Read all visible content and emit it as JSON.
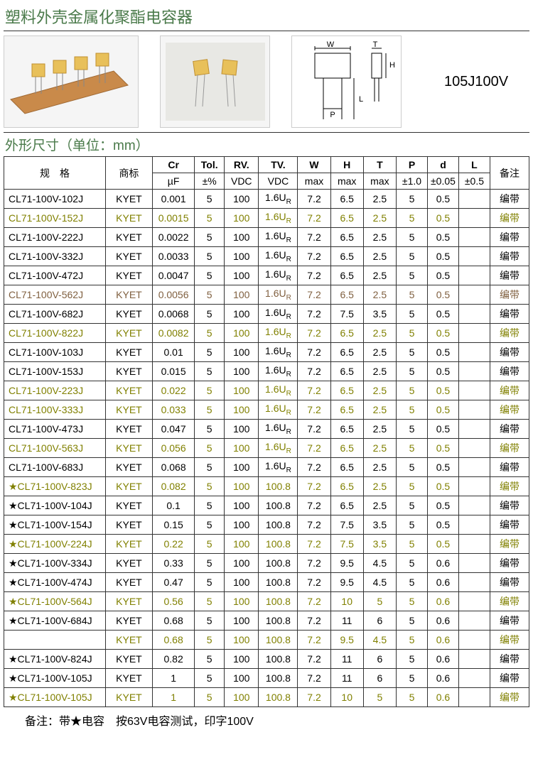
{
  "title": "塑料外壳金属化聚酯电容器",
  "product_label": "105J100V",
  "subtitle": "外形尺寸（单位：mm）",
  "footnote": "备注：带★电容　按63V电容测试，印字100V",
  "headers": {
    "row1": {
      "spec": "规　格",
      "brand": "商标",
      "cr": "Cr",
      "tol": "Tol.",
      "rv": "RV.",
      "tv": "TV.",
      "w": "W",
      "h": "H",
      "t": "T",
      "p": "P",
      "d": "d",
      "l": "L",
      "note": "备注"
    },
    "row2": {
      "cr": "µF",
      "tol": "±%",
      "rv": "VDC",
      "tv": "VDC",
      "w": "max",
      "h": "max",
      "t": "max",
      "p": "±1.0",
      "d": "±0.05",
      "l": "±0.5"
    }
  },
  "row_colors": {
    "black": "#000000",
    "olive": "#808000",
    "brown": "#806040"
  },
  "rows": [
    {
      "cls": "black",
      "spec": "CL71-100V-102J",
      "brand": "KYET",
      "cr": "0.001",
      "tol": "5",
      "rv": "100",
      "tv": "1.6U",
      "tvs": "R",
      "w": "7.2",
      "h": "6.5",
      "t": "2.5",
      "p": "5",
      "d": "0.5",
      "l": "",
      "note": "编带"
    },
    {
      "cls": "alt",
      "spec": "CL71-100V-152J",
      "brand": "KYET",
      "cr": "0.0015",
      "tol": "5",
      "rv": "100",
      "tv": "1.6U",
      "tvs": "R",
      "w": "7.2",
      "h": "6.5",
      "t": "2.5",
      "p": "5",
      "d": "0.5",
      "l": "",
      "note": "编带"
    },
    {
      "cls": "black",
      "spec": "CL71-100V-222J",
      "brand": "KYET",
      "cr": "0.0022",
      "tol": "5",
      "rv": "100",
      "tv": "1.6U",
      "tvs": "R",
      "w": "7.2",
      "h": "6.5",
      "t": "2.5",
      "p": "5",
      "d": "0.5",
      "l": "",
      "note": "编带"
    },
    {
      "cls": "black",
      "spec": "CL71-100V-332J",
      "brand": "KYET",
      "cr": "0.0033",
      "tol": "5",
      "rv": "100",
      "tv": "1.6U",
      "tvs": "R",
      "w": "7.2",
      "h": "6.5",
      "t": "2.5",
      "p": "5",
      "d": "0.5",
      "l": "",
      "note": "编带"
    },
    {
      "cls": "black",
      "spec": "CL71-100V-472J",
      "brand": "KYET",
      "cr": "0.0047",
      "tol": "5",
      "rv": "100",
      "tv": "1.6U",
      "tvs": "R",
      "w": "7.2",
      "h": "6.5",
      "t": "2.5",
      "p": "5",
      "d": "0.5",
      "l": "",
      "note": "编带"
    },
    {
      "cls": "brown",
      "spec": "CL71-100V-562J",
      "brand": "KYET",
      "cr": "0.0056",
      "tol": "5",
      "rv": "100",
      "tv": "1.6U",
      "tvs": "R",
      "w": "7.2",
      "h": "6.5",
      "t": "2.5",
      "p": "5",
      "d": "0.5",
      "l": "",
      "note": "编带"
    },
    {
      "cls": "black",
      "spec": "CL71-100V-682J",
      "brand": "KYET",
      "cr": "0.0068",
      "tol": "5",
      "rv": "100",
      "tv": "1.6U",
      "tvs": "R",
      "w": "7.2",
      "h": "7.5",
      "t": "3.5",
      "p": "5",
      "d": "0.5",
      "l": "",
      "note": "编带"
    },
    {
      "cls": "alt",
      "spec": "CL71-100V-822J",
      "brand": "KYET",
      "cr": "0.0082",
      "tol": "5",
      "rv": "100",
      "tv": "1.6U",
      "tvs": "R",
      "w": "7.2",
      "h": "6.5",
      "t": "2.5",
      "p": "5",
      "d": "0.5",
      "l": "",
      "note": "编带"
    },
    {
      "cls": "black",
      "spec": "CL71-100V-103J",
      "brand": "KYET",
      "cr": "0.01",
      "tol": "5",
      "rv": "100",
      "tv": "1.6U",
      "tvs": "R",
      "w": "7.2",
      "h": "6.5",
      "t": "2.5",
      "p": "5",
      "d": "0.5",
      "l": "",
      "note": "编带"
    },
    {
      "cls": "black",
      "spec": "CL71-100V-153J",
      "brand": "KYET",
      "cr": "0.015",
      "tol": "5",
      "rv": "100",
      "tv": "1.6U",
      "tvs": "R",
      "w": "7.2",
      "h": "6.5",
      "t": "2.5",
      "p": "5",
      "d": "0.5",
      "l": "",
      "note": "编带"
    },
    {
      "cls": "alt",
      "spec": "CL71-100V-223J",
      "brand": "KYET",
      "cr": "0.022",
      "tol": "5",
      "rv": "100",
      "tv": "1.6U",
      "tvs": "R",
      "w": "7.2",
      "h": "6.5",
      "t": "2.5",
      "p": "5",
      "d": "0.5",
      "l": "",
      "note": "编带"
    },
    {
      "cls": "alt",
      "spec": "CL71-100V-333J",
      "brand": "KYET",
      "cr": "0.033",
      "tol": "5",
      "rv": "100",
      "tv": "1.6U",
      "tvs": "R",
      "w": "7.2",
      "h": "6.5",
      "t": "2.5",
      "p": "5",
      "d": "0.5",
      "l": "",
      "note": "编带"
    },
    {
      "cls": "black",
      "spec": "CL71-100V-473J",
      "brand": "KYET",
      "cr": "0.047",
      "tol": "5",
      "rv": "100",
      "tv": "1.6U",
      "tvs": "R",
      "w": "7.2",
      "h": "6.5",
      "t": "2.5",
      "p": "5",
      "d": "0.5",
      "l": "",
      "note": "编带"
    },
    {
      "cls": "alt",
      "spec": "CL71-100V-563J",
      "brand": "KYET",
      "cr": "0.056",
      "tol": "5",
      "rv": "100",
      "tv": "1.6U",
      "tvs": "R",
      "w": "7.2",
      "h": "6.5",
      "t": "2.5",
      "p": "5",
      "d": "0.5",
      "l": "",
      "note": "编带"
    },
    {
      "cls": "black",
      "spec": "CL71-100V-683J",
      "brand": "KYET",
      "cr": "0.068",
      "tol": "5",
      "rv": "100",
      "tv": "1.6U",
      "tvs": "R",
      "w": "7.2",
      "h": "6.5",
      "t": "2.5",
      "p": "5",
      "d": "0.5",
      "l": "",
      "note": "编带"
    },
    {
      "cls": "alt",
      "spec": "★CL71-100V-823J",
      "brand": "KYET",
      "cr": "0.082",
      "tol": "5",
      "rv": "100",
      "tv": "100.8",
      "tvs": "",
      "w": "7.2",
      "h": "6.5",
      "t": "2.5",
      "p": "5",
      "d": "0.5",
      "l": "",
      "note": "编带"
    },
    {
      "cls": "black",
      "spec": "★CL71-100V-104J",
      "brand": "KYET",
      "cr": "0.1",
      "tol": "5",
      "rv": "100",
      "tv": "100.8",
      "tvs": "",
      "w": "7.2",
      "h": "6.5",
      "t": "2.5",
      "p": "5",
      "d": "0.5",
      "l": "",
      "note": "编带"
    },
    {
      "cls": "black",
      "spec": "★CL71-100V-154J",
      "brand": "KYET",
      "cr": "0.15",
      "tol": "5",
      "rv": "100",
      "tv": "100.8",
      "tvs": "",
      "w": "7.2",
      "h": "7.5",
      "t": "3.5",
      "p": "5",
      "d": "0.5",
      "l": "",
      "note": "编带"
    },
    {
      "cls": "alt",
      "spec": "★CL71-100V-224J",
      "brand": "KYET",
      "cr": "0.22",
      "tol": "5",
      "rv": "100",
      "tv": "100.8",
      "tvs": "",
      "w": "7.2",
      "h": "7.5",
      "t": "3.5",
      "p": "5",
      "d": "0.5",
      "l": "",
      "note": "编带"
    },
    {
      "cls": "black",
      "spec": "★CL71-100V-334J",
      "brand": "KYET",
      "cr": "0.33",
      "tol": "5",
      "rv": "100",
      "tv": "100.8",
      "tvs": "",
      "w": "7.2",
      "h": "9.5",
      "t": "4.5",
      "p": "5",
      "d": "0.6",
      "l": "",
      "note": "编带"
    },
    {
      "cls": "black",
      "spec": "★CL71-100V-474J",
      "brand": "KYET",
      "cr": "0.47",
      "tol": "5",
      "rv": "100",
      "tv": "100.8",
      "tvs": "",
      "w": "7.2",
      "h": "9.5",
      "t": "4.5",
      "p": "5",
      "d": "0.6",
      "l": "",
      "note": "编带"
    },
    {
      "cls": "alt",
      "spec": "★CL71-100V-564J",
      "brand": "KYET",
      "cr": "0.56",
      "tol": "5",
      "rv": "100",
      "tv": "100.8",
      "tvs": "",
      "w": "7.2",
      "h": "10",
      "t": "5",
      "p": "5",
      "d": "0.6",
      "l": "",
      "note": "编带"
    },
    {
      "cls": "black",
      "spec": "★CL71-100V-684J",
      "brand": "KYET",
      "cr": "0.68",
      "tol": "5",
      "rv": "100",
      "tv": "100.8",
      "tvs": "",
      "w": "7.2",
      "h": "11",
      "t": "6",
      "p": "5",
      "d": "0.6",
      "l": "",
      "note": "编带"
    },
    {
      "cls": "alt",
      "spec": "",
      "brand": "KYET",
      "cr": "0.68",
      "tol": "5",
      "rv": "100",
      "tv": "100.8",
      "tvs": "",
      "w": "7.2",
      "h": "9.5",
      "t": "4.5",
      "p": "5",
      "d": "0.6",
      "l": "",
      "note": "编带"
    },
    {
      "cls": "black",
      "spec": "★CL71-100V-824J",
      "brand": "KYET",
      "cr": "0.82",
      "tol": "5",
      "rv": "100",
      "tv": "100.8",
      "tvs": "",
      "w": "7.2",
      "h": "11",
      "t": "6",
      "p": "5",
      "d": "0.6",
      "l": "",
      "note": "编带"
    },
    {
      "cls": "black",
      "spec": "★CL71-100V-105J",
      "brand": "KYET",
      "cr": "1",
      "tol": "5",
      "rv": "100",
      "tv": "100.8",
      "tvs": "",
      "w": "7.2",
      "h": "11",
      "t": "6",
      "p": "5",
      "d": "0.6",
      "l": "",
      "note": "编带"
    },
    {
      "cls": "alt",
      "spec": "★CL71-100V-105J",
      "brand": "KYET",
      "cr": "1",
      "tol": "5",
      "rv": "100",
      "tv": "100.8",
      "tvs": "",
      "w": "7.2",
      "h": "10",
      "t": "5",
      "p": "5",
      "d": "0.6",
      "l": "",
      "note": "编带"
    }
  ]
}
